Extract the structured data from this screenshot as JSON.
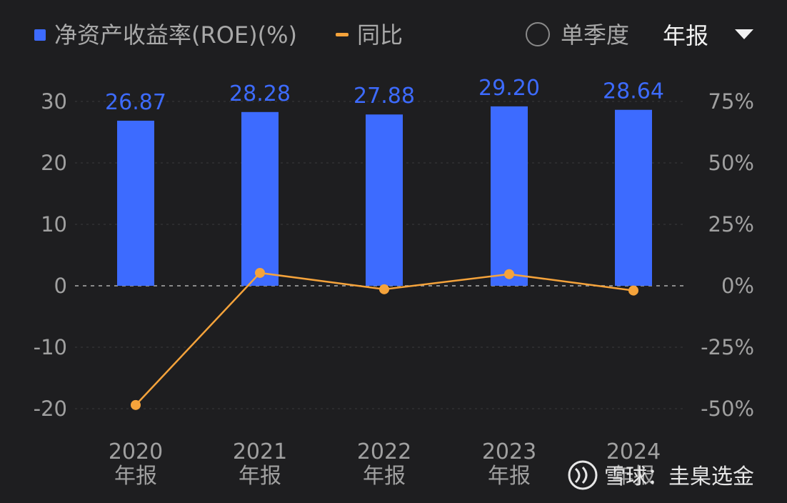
{
  "header": {
    "legend_bar_label": "净资产收益率(ROE)(%)",
    "legend_line_label": "同比",
    "quarter_toggle_label": "单季度",
    "period_select_value": "年报",
    "dropdown_icon": "caret-down-icon",
    "quarter_toggle_icon": "radio-unchecked-icon"
  },
  "colors": {
    "background": "#1e1e20",
    "bar": "#3d6bff",
    "line": "#f5a33b",
    "text_muted": "#a0a0a0"
  },
  "watermark": {
    "logo_icon": "snowball-logo-icon",
    "text": "雪球：圭臬选金"
  },
  "chart_data": {
    "type": "bar",
    "categories": [
      "2020\n年报",
      "2021\n年报",
      "2022\n年报",
      "2023\n年报",
      "2024\n年报"
    ],
    "category_years": [
      "2020",
      "2021",
      "2022",
      "2023",
      "2024"
    ],
    "category_suffix": "年报",
    "series": [
      {
        "name": "净资产收益率(ROE)(%)",
        "type": "bar",
        "axis": "left",
        "values": [
          26.87,
          28.28,
          27.88,
          29.2,
          28.64
        ],
        "labels": [
          "26.87",
          "28.28",
          "27.88",
          "29.20",
          "28.64"
        ]
      },
      {
        "name": "同比",
        "type": "line",
        "axis": "right",
        "values": [
          -48.5,
          5.25,
          -1.41,
          4.73,
          -1.92
        ]
      }
    ],
    "y_left": {
      "ticks": [
        30,
        20,
        10,
        0,
        -10,
        -20
      ],
      "tick_labels": [
        "30",
        "20",
        "10",
        "0",
        "-10",
        "-20"
      ],
      "ylim": [
        -20,
        30
      ]
    },
    "y_right": {
      "ticks": [
        75,
        50,
        25,
        0,
        -25,
        -50
      ],
      "tick_labels": [
        "75%",
        "50%",
        "25%",
        "0%",
        "-25%",
        "-50%"
      ],
      "ylim": [
        -50,
        75
      ]
    },
    "grid": true,
    "zero_line": "dashed",
    "legend": "top-left"
  }
}
